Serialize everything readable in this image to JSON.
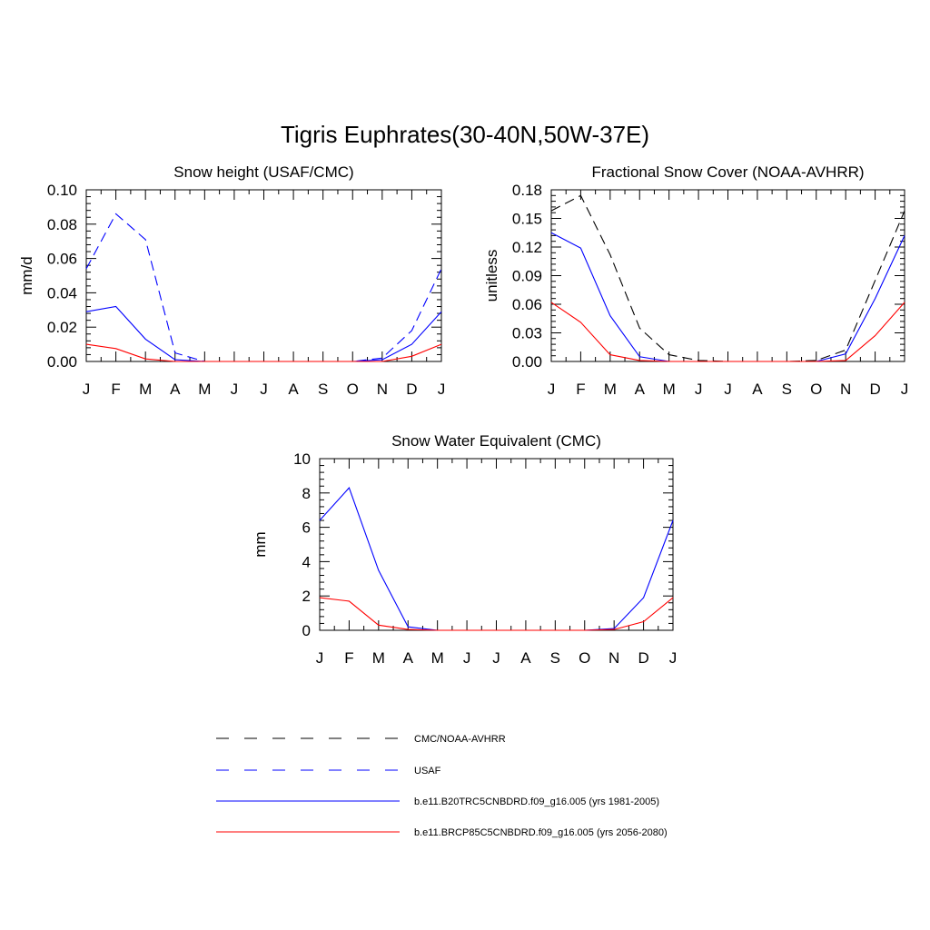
{
  "figure_title": "Tigris Euphrates(30-40N,50W-37E)",
  "months": [
    "J",
    "F",
    "M",
    "A",
    "M",
    "J",
    "J",
    "A",
    "S",
    "O",
    "N",
    "D",
    "J"
  ],
  "colors": {
    "obs": "#000000",
    "usaf": "#0000ff",
    "hist": "#0000ff",
    "future": "#ff0000"
  },
  "legend": [
    {
      "label": "CMC/NOAA-AVHRR",
      "color": "#000000",
      "dashed": true
    },
    {
      "label": "USAF",
      "color": "#0000ff",
      "dashed": true
    },
    {
      "label": "b.e11.B20TRC5CNBDRD.f09_g16.005 (yrs 1981-2005)",
      "color": "#0000ff",
      "dashed": false
    },
    {
      "label": "b.e11.BRCP85C5CNBDRD.f09_g16.005 (yrs 2056-2080)",
      "color": "#ff0000",
      "dashed": false
    }
  ],
  "chart_data": [
    {
      "type": "line",
      "title": "Snow height (USAF/CMC)",
      "ylabel": "mm/d",
      "ylim": [
        0,
        0.1
      ],
      "yticks": [
        "0.00",
        "0.02",
        "0.04",
        "0.06",
        "0.08",
        "0.10"
      ],
      "ytick_values": [
        0,
        0.02,
        0.04,
        0.06,
        0.08,
        0.1
      ],
      "series": [
        {
          "name": "CMC/NOAA-AVHRR",
          "color": "#000000",
          "dashed": true,
          "values": [
            0,
            0,
            0,
            0,
            0,
            0,
            0,
            0,
            0,
            0,
            0,
            0,
            0
          ]
        },
        {
          "name": "USAF",
          "color": "#0000ff",
          "dashed": true,
          "values": [
            0.054,
            0.086,
            0.071,
            0.005,
            0,
            0,
            0,
            0,
            0,
            0,
            0.002,
            0.018,
            0.054
          ]
        },
        {
          "name": "b.e11.B20TRC5CNBDRD.f09_g16.005 (yrs 1981-2005)",
          "color": "#0000ff",
          "dashed": false,
          "values": [
            0.029,
            0.032,
            0.013,
            0.001,
            0,
            0,
            0,
            0,
            0,
            0,
            0.001,
            0.01,
            0.029
          ]
        },
        {
          "name": "b.e11.BRCP85C5CNBDRD.f09_g16.005 (yrs 2056-2080)",
          "color": "#ff0000",
          "dashed": false,
          "values": [
            0.01,
            0.0075,
            0.0015,
            0,
            0,
            0,
            0,
            0,
            0,
            0,
            0,
            0.003,
            0.01
          ]
        }
      ]
    },
    {
      "type": "line",
      "title": "Fractional Snow Cover (NOAA-AVHRR)",
      "ylabel": "unitless",
      "ylim": [
        0,
        0.18
      ],
      "yticks": [
        "0.00",
        "0.03",
        "0.06",
        "0.09",
        "0.12",
        "0.15",
        "0.18"
      ],
      "ytick_values": [
        0,
        0.03,
        0.06,
        0.09,
        0.12,
        0.15,
        0.18
      ],
      "series": [
        {
          "name": "CMC/NOAA-AVHRR",
          "color": "#000000",
          "dashed": true,
          "values": [
            0.158,
            0.174,
            0.112,
            0.035,
            0.007,
            0.001,
            0,
            0,
            0,
            0.001,
            0.012,
            0.085,
            0.158
          ]
        },
        {
          "name": "b.e11.B20TRC5CNBDRD.f09_g16.005 (yrs 1981-2005)",
          "color": "#0000ff",
          "dashed": false,
          "values": [
            0.135,
            0.119,
            0.048,
            0.005,
            0,
            0,
            0,
            0,
            0,
            0,
            0.008,
            0.066,
            0.132
          ]
        },
        {
          "name": "b.e11.BRCP85C5CNBDRD.f09_g16.005 (yrs 2056-2080)",
          "color": "#ff0000",
          "dashed": false,
          "values": [
            0.062,
            0.041,
            0.007,
            0.001,
            0,
            0,
            0,
            0,
            0,
            0,
            0.001,
            0.027,
            0.062
          ]
        }
      ]
    },
    {
      "type": "line",
      "title": "Snow Water Equivalent (CMC)",
      "ylabel": "mm",
      "ylim": [
        0,
        10
      ],
      "yticks": [
        "0",
        "2",
        "4",
        "6",
        "8",
        "10"
      ],
      "ytick_values": [
        0,
        2,
        4,
        6,
        8,
        10
      ],
      "series": [
        {
          "name": "CMC/NOAA-AVHRR",
          "color": "#000000",
          "dashed": true,
          "values": [
            0,
            0,
            0,
            0,
            0,
            0,
            0,
            0,
            0,
            0,
            0,
            0,
            0
          ]
        },
        {
          "name": "b.e11.B20TRC5CNBDRD.f09_g16.005 (yrs 1981-2005)",
          "color": "#0000ff",
          "dashed": false,
          "values": [
            6.4,
            8.3,
            3.5,
            0.2,
            0,
            0,
            0,
            0,
            0,
            0,
            0.1,
            1.9,
            6.4
          ]
        },
        {
          "name": "b.e11.BRCP85C5CNBDRD.f09_g16.005 (yrs 2056-2080)",
          "color": "#ff0000",
          "dashed": false,
          "values": [
            1.9,
            1.7,
            0.3,
            0.05,
            0,
            0,
            0,
            0,
            0,
            0,
            0.05,
            0.5,
            1.9
          ]
        }
      ]
    }
  ]
}
